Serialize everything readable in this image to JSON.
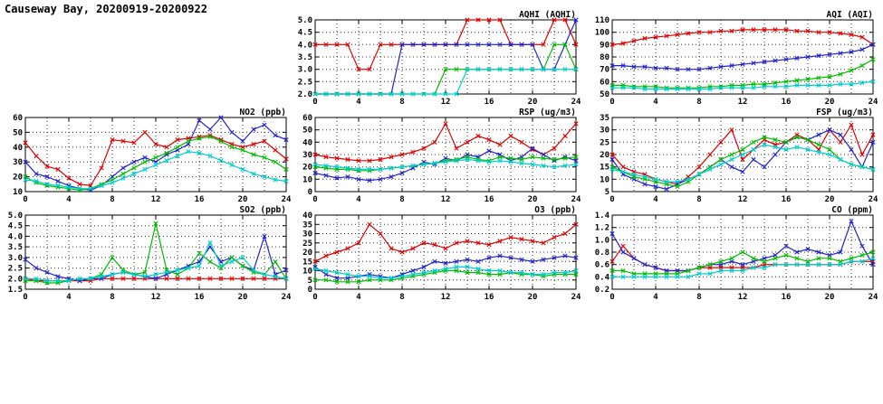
{
  "page": {
    "title": "Causeway Bay, 20200919-20200922"
  },
  "colors": {
    "red": "#dd0000",
    "blue": "#2222cc",
    "green": "#00bb00",
    "cyan": "#00cccc",
    "grid": "#333333",
    "axis": "#000000"
  },
  "x_axis": {
    "hours": [
      0,
      1,
      2,
      3,
      4,
      5,
      6,
      7,
      8,
      9,
      10,
      11,
      12,
      13,
      14,
      15,
      16,
      17,
      18,
      19,
      20,
      21,
      22,
      23,
      24
    ],
    "lim": [
      0,
      24
    ],
    "ticks": [
      0,
      4,
      8,
      12,
      16,
      20,
      24
    ],
    "grid_step": 2
  },
  "chart_data": [
    {
      "id": "aqhi",
      "type": "line",
      "title": "AQHI (AQHI)",
      "ylim": [
        2.0,
        5.0
      ],
      "ydecimals": 1,
      "yticks": [
        2.0,
        2.5,
        3.0,
        3.5,
        4.0,
        4.5,
        5.0
      ],
      "series": [
        {
          "name": "red",
          "color": "red",
          "values": [
            4,
            4,
            4,
            4,
            3,
            3,
            4,
            4,
            4,
            4,
            4,
            4,
            4,
            4,
            5,
            5,
            5,
            5,
            4,
            4,
            4,
            4,
            5,
            5,
            4
          ]
        },
        {
          "name": "blue",
          "color": "blue",
          "values": [
            2,
            2,
            2,
            2,
            2,
            2,
            2,
            2,
            4,
            4,
            4,
            4,
            4,
            4,
            4,
            4,
            4,
            4,
            4,
            4,
            4,
            3,
            3,
            4,
            5
          ]
        },
        {
          "name": "green",
          "color": "green",
          "values": [
            2,
            2,
            2,
            2,
            2,
            2,
            2,
            2,
            2,
            2,
            2,
            2,
            3,
            3,
            3,
            3,
            3,
            3,
            3,
            3,
            3,
            3,
            4,
            4,
            3
          ]
        },
        {
          "name": "cyan",
          "color": "cyan",
          "values": [
            2,
            2,
            2,
            2,
            2,
            2,
            2,
            2,
            2,
            2,
            2,
            2,
            2,
            2,
            3,
            3,
            3,
            3,
            3,
            3,
            3,
            3,
            3,
            3,
            3
          ]
        }
      ]
    },
    {
      "id": "aqi",
      "type": "line",
      "title": "AQI (AQI)",
      "ylim": [
        50,
        110
      ],
      "ydecimals": 0,
      "yticks": [
        50,
        60,
        70,
        80,
        90,
        100,
        110
      ],
      "series": [
        {
          "name": "red",
          "color": "red",
          "values": [
            90,
            91,
            93,
            95,
            96,
            97,
            98,
            99,
            100,
            100,
            101,
            101,
            102,
            102,
            102,
            102,
            102,
            101,
            101,
            100,
            100,
            99,
            98,
            96,
            90
          ]
        },
        {
          "name": "blue",
          "color": "blue",
          "values": [
            73,
            73,
            72,
            72,
            71,
            71,
            70,
            70,
            70,
            71,
            72,
            73,
            74,
            75,
            76,
            77,
            78,
            79,
            80,
            81,
            82,
            83,
            84,
            86,
            90
          ]
        },
        {
          "name": "green",
          "color": "green",
          "values": [
            57,
            57,
            56,
            56,
            56,
            55,
            55,
            55,
            55,
            56,
            56,
            57,
            57,
            58,
            58,
            59,
            60,
            61,
            62,
            63,
            64,
            66,
            69,
            73,
            78
          ]
        },
        {
          "name": "cyan",
          "color": "cyan",
          "values": [
            55,
            55,
            55,
            54,
            54,
            54,
            54,
            54,
            54,
            54,
            55,
            55,
            55,
            55,
            56,
            56,
            56,
            57,
            57,
            57,
            57,
            58,
            58,
            59,
            60
          ]
        }
      ]
    },
    {
      "id": "no2",
      "type": "line",
      "title": "NO2 (ppb)",
      "ylim": [
        10,
        60
      ],
      "ydecimals": 0,
      "yticks": [
        10,
        20,
        30,
        40,
        50,
        60
      ],
      "series": [
        {
          "name": "red",
          "color": "red",
          "values": [
            43,
            34,
            27,
            25,
            19,
            15,
            14,
            26,
            45,
            44,
            43,
            50,
            42,
            40,
            45,
            46,
            47,
            48,
            45,
            42,
            40,
            42,
            44,
            38,
            32
          ]
        },
        {
          "name": "blue",
          "color": "blue",
          "values": [
            30,
            22,
            20,
            17,
            14,
            12,
            11,
            14,
            20,
            26,
            30,
            33,
            30,
            35,
            38,
            42,
            58,
            52,
            60,
            50,
            44,
            52,
            55,
            48,
            45
          ]
        },
        {
          "name": "green",
          "color": "green",
          "values": [
            20,
            16,
            14,
            13,
            12,
            11,
            12,
            15,
            18,
            22,
            26,
            30,
            33,
            36,
            40,
            44,
            46,
            47,
            44,
            40,
            38,
            35,
            33,
            30,
            25
          ]
        },
        {
          "name": "cyan",
          "color": "cyan",
          "values": [
            18,
            17,
            15,
            14,
            13,
            12,
            12,
            14,
            16,
            19,
            22,
            25,
            28,
            31,
            34,
            37,
            36,
            34,
            31,
            28,
            25,
            22,
            20,
            18,
            17
          ]
        }
      ]
    },
    {
      "id": "rsp",
      "type": "line",
      "title": "RSP (ug/m3)",
      "ylim": [
        0,
        60
      ],
      "ydecimals": 0,
      "yticks": [
        0,
        10,
        20,
        30,
        40,
        50,
        60
      ],
      "series": [
        {
          "name": "red",
          "color": "red",
          "values": [
            30,
            28,
            27,
            26,
            25,
            25,
            26,
            28,
            30,
            32,
            35,
            40,
            55,
            35,
            40,
            45,
            42,
            38,
            45,
            40,
            34,
            30,
            35,
            45,
            55
          ]
        },
        {
          "name": "blue",
          "color": "blue",
          "values": [
            15,
            13,
            11,
            12,
            10,
            9,
            10,
            12,
            15,
            19,
            24,
            22,
            27,
            25,
            30,
            28,
            33,
            30,
            25,
            28,
            35,
            30,
            25,
            28,
            25
          ]
        },
        {
          "name": "green",
          "color": "green",
          "values": [
            20,
            19,
            18,
            18,
            17,
            17,
            18,
            19,
            20,
            21,
            22,
            23,
            25,
            26,
            28,
            26,
            25,
            28,
            27,
            26,
            28,
            27,
            26,
            27,
            28
          ]
        },
        {
          "name": "cyan",
          "color": "cyan",
          "values": [
            22,
            21,
            20,
            19,
            18,
            18,
            18,
            19,
            20,
            21,
            22,
            23,
            24,
            25,
            26,
            25,
            24,
            25,
            24,
            23,
            22,
            21,
            20,
            21,
            22
          ]
        }
      ]
    },
    {
      "id": "fsp",
      "type": "line",
      "title": "FSP (ug/m3)",
      "ylim": [
        5,
        35
      ],
      "ydecimals": 0,
      "yticks": [
        5,
        10,
        15,
        20,
        25,
        30,
        35
      ],
      "series": [
        {
          "name": "red",
          "color": "red",
          "values": [
            20,
            15,
            13,
            12,
            10,
            9,
            8,
            11,
            15,
            20,
            25,
            30,
            18,
            22,
            26,
            24,
            25,
            28,
            26,
            22,
            30,
            25,
            32,
            20,
            28
          ]
        },
        {
          "name": "blue",
          "color": "blue",
          "values": [
            18,
            12,
            10,
            8,
            7,
            6,
            8,
            10,
            12,
            15,
            18,
            15,
            13,
            18,
            15,
            20,
            25,
            27,
            26,
            28,
            30,
            28,
            22,
            15,
            25
          ]
        },
        {
          "name": "green",
          "color": "green",
          "values": [
            15,
            13,
            11,
            10,
            9,
            8,
            7,
            9,
            12,
            15,
            18,
            20,
            22,
            25,
            27,
            26,
            25,
            27,
            26,
            24,
            22,
            18,
            16,
            15,
            14
          ]
        },
        {
          "name": "cyan",
          "color": "cyan",
          "values": [
            14,
            13,
            12,
            11,
            10,
            9,
            9,
            10,
            12,
            14,
            16,
            18,
            20,
            22,
            24,
            23,
            22,
            23,
            22,
            21,
            20,
            18,
            16,
            15,
            14
          ]
        }
      ]
    },
    {
      "id": "so2",
      "type": "line",
      "title": "SO2 (ppb)",
      "ylim": [
        1.5,
        5.0
      ],
      "ydecimals": 1,
      "yticks": [
        1.5,
        2.0,
        2.5,
        3.0,
        3.5,
        4.0,
        4.5,
        5.0
      ],
      "series": [
        {
          "name": "red",
          "color": "red",
          "values": [
            2.0,
            1.9,
            1.9,
            1.9,
            1.9,
            1.9,
            1.9,
            2.0,
            2.0,
            2.0,
            2.0,
            2.0,
            2.0,
            2.0,
            2.0,
            2.0,
            2.0,
            2.0,
            2.0,
            2.0,
            2.0,
            2.0,
            2.0,
            2.0,
            2.0
          ]
        },
        {
          "name": "blue",
          "color": "blue",
          "values": [
            2.9,
            2.5,
            2.3,
            2.1,
            2.0,
            1.9,
            2.0,
            2.0,
            2.2,
            2.3,
            2.2,
            2.1,
            2.0,
            2.2,
            2.4,
            2.6,
            2.8,
            3.5,
            2.8,
            3.0,
            2.6,
            2.4,
            4.0,
            2.2,
            2.4
          ]
        },
        {
          "name": "green",
          "color": "green",
          "values": [
            1.9,
            1.9,
            1.8,
            1.8,
            1.9,
            2.0,
            2.0,
            2.2,
            3.0,
            2.4,
            2.2,
            2.3,
            4.6,
            2.4,
            2.2,
            2.5,
            3.2,
            2.8,
            2.5,
            3.0,
            2.6,
            2.3,
            2.2,
            2.8,
            2.0
          ]
        },
        {
          "name": "cyan",
          "color": "cyan",
          "values": [
            2.0,
            2.0,
            1.9,
            1.9,
            1.9,
            2.0,
            2.0,
            2.1,
            2.2,
            2.3,
            2.2,
            2.1,
            2.2,
            2.3,
            2.4,
            2.5,
            2.6,
            3.7,
            2.6,
            2.8,
            3.0,
            2.4,
            2.2,
            2.1,
            2.0
          ]
        }
      ]
    },
    {
      "id": "o3",
      "type": "line",
      "title": "O3 (ppb)",
      "ylim": [
        0,
        40
      ],
      "ydecimals": 0,
      "yticks": [
        0,
        5,
        10,
        15,
        20,
        25,
        30,
        35,
        40
      ],
      "series": [
        {
          "name": "red",
          "color": "red",
          "values": [
            15,
            18,
            20,
            22,
            25,
            35,
            30,
            22,
            20,
            22,
            25,
            24,
            22,
            25,
            26,
            25,
            24,
            26,
            28,
            27,
            26,
            25,
            28,
            30,
            35
          ]
        },
        {
          "name": "blue",
          "color": "blue",
          "values": [
            12,
            8,
            6,
            6,
            7,
            8,
            7,
            6,
            8,
            10,
            12,
            15,
            14,
            15,
            16,
            15,
            17,
            18,
            17,
            16,
            15,
            16,
            17,
            18,
            17
          ]
        },
        {
          "name": "green",
          "color": "green",
          "values": [
            5,
            5,
            4,
            4,
            4,
            5,
            5,
            5,
            6,
            7,
            8,
            9,
            10,
            10,
            9,
            9,
            8,
            8,
            9,
            8,
            8,
            7,
            8,
            8,
            8
          ]
        },
        {
          "name": "cyan",
          "color": "cyan",
          "values": [
            11,
            10,
            9,
            8,
            7,
            7,
            6,
            6,
            7,
            8,
            9,
            10,
            11,
            12,
            12,
            11,
            10,
            10,
            9,
            9,
            8,
            8,
            9,
            9,
            10
          ]
        }
      ]
    },
    {
      "id": "co",
      "type": "line",
      "title": "CO (ppm)",
      "ylim": [
        0.2,
        1.4
      ],
      "ydecimals": 1,
      "yticks": [
        0.2,
        0.4,
        0.6,
        0.8,
        1.0,
        1.2,
        1.4
      ],
      "series": [
        {
          "name": "red",
          "color": "red",
          "values": [
            0.65,
            0.9,
            0.7,
            0.6,
            0.55,
            0.5,
            0.5,
            0.5,
            0.55,
            0.55,
            0.55,
            0.55,
            0.55,
            0.55,
            0.6,
            0.6,
            0.6,
            0.6,
            0.6,
            0.6,
            0.6,
            0.6,
            0.65,
            0.65,
            0.65
          ]
        },
        {
          "name": "blue",
          "color": "blue",
          "values": [
            1.1,
            0.8,
            0.7,
            0.6,
            0.55,
            0.5,
            0.5,
            0.5,
            0.55,
            0.6,
            0.6,
            0.65,
            0.6,
            0.65,
            0.7,
            0.75,
            0.9,
            0.8,
            0.85,
            0.8,
            0.75,
            0.8,
            1.3,
            0.9,
            0.6
          ]
        },
        {
          "name": "green",
          "color": "green",
          "values": [
            0.5,
            0.5,
            0.45,
            0.45,
            0.45,
            0.45,
            0.45,
            0.5,
            0.55,
            0.6,
            0.65,
            0.7,
            0.8,
            0.7,
            0.65,
            0.7,
            0.75,
            0.7,
            0.65,
            0.7,
            0.7,
            0.65,
            0.7,
            0.75,
            0.8
          ]
        },
        {
          "name": "cyan",
          "color": "cyan",
          "values": [
            0.4,
            0.4,
            0.4,
            0.4,
            0.4,
            0.4,
            0.4,
            0.4,
            0.45,
            0.45,
            0.5,
            0.5,
            0.5,
            0.55,
            0.55,
            0.6,
            0.6,
            0.6,
            0.6,
            0.6,
            0.6,
            0.6,
            0.65,
            0.65,
            0.7
          ]
        }
      ]
    }
  ]
}
